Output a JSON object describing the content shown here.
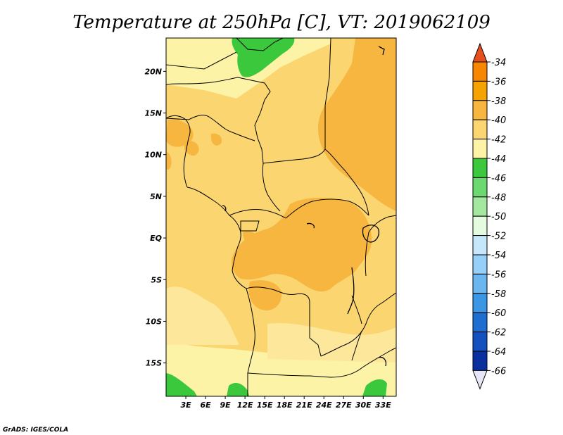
{
  "title": "Temperature at 250hPa [C], VT: 2019062109",
  "credit": "GrADS: IGES/COLA",
  "map": {
    "lon_range": [
      0,
      35
    ],
    "lat_range": [
      -19,
      24
    ],
    "lat_ticks": [
      {
        "value": 20,
        "label": "20N"
      },
      {
        "value": 15,
        "label": "15N"
      },
      {
        "value": 10,
        "label": "10N"
      },
      {
        "value": 5,
        "label": "5N"
      },
      {
        "value": 0,
        "label": "EQ"
      },
      {
        "value": -5,
        "label": "5S"
      },
      {
        "value": -10,
        "label": "10S"
      },
      {
        "value": -15,
        "label": "15S"
      }
    ],
    "lon_ticks": [
      {
        "value": 3,
        "label": "3E"
      },
      {
        "value": 6,
        "label": "6E"
      },
      {
        "value": 9,
        "label": "9E"
      },
      {
        "value": 12,
        "label": "12E"
      },
      {
        "value": 15,
        "label": "15E"
      },
      {
        "value": 18,
        "label": "18E"
      },
      {
        "value": 21,
        "label": "21E"
      },
      {
        "value": 24,
        "label": "24E"
      },
      {
        "value": 27,
        "label": "27E"
      },
      {
        "value": 30,
        "label": "30E"
      },
      {
        "value": 33,
        "label": "33E"
      }
    ]
  },
  "colorbar": {
    "labels": [
      "-34",
      "-36",
      "-38",
      "-40",
      "-42",
      "-44",
      "-46",
      "-48",
      "-50",
      "-52",
      "-54",
      "-56",
      "-58",
      "-60",
      "-62",
      "-64",
      "-66"
    ],
    "colors": [
      "#e6501f",
      "#f78600",
      "#f5a300",
      "#f7b640",
      "#fbd570",
      "#fdf3a6",
      "#3cc83c",
      "#6cd870",
      "#a4e8a0",
      "#e4fbe0",
      "#c6e6fa",
      "#96d0f8",
      "#6cb6f0",
      "#3c96e6",
      "#1e6ed2",
      "#1450be",
      "#0a30a0",
      "#0a0a6c"
    ],
    "over_color": "#e6501f",
    "under_color": "#e6e6f8"
  },
  "fields": {
    "background_color": "#fbd570",
    "colors": {
      "warm": "#f7b640",
      "warmer": "#f5a300",
      "cool": "#fdf3a6",
      "green": "#3cc83c"
    }
  }
}
